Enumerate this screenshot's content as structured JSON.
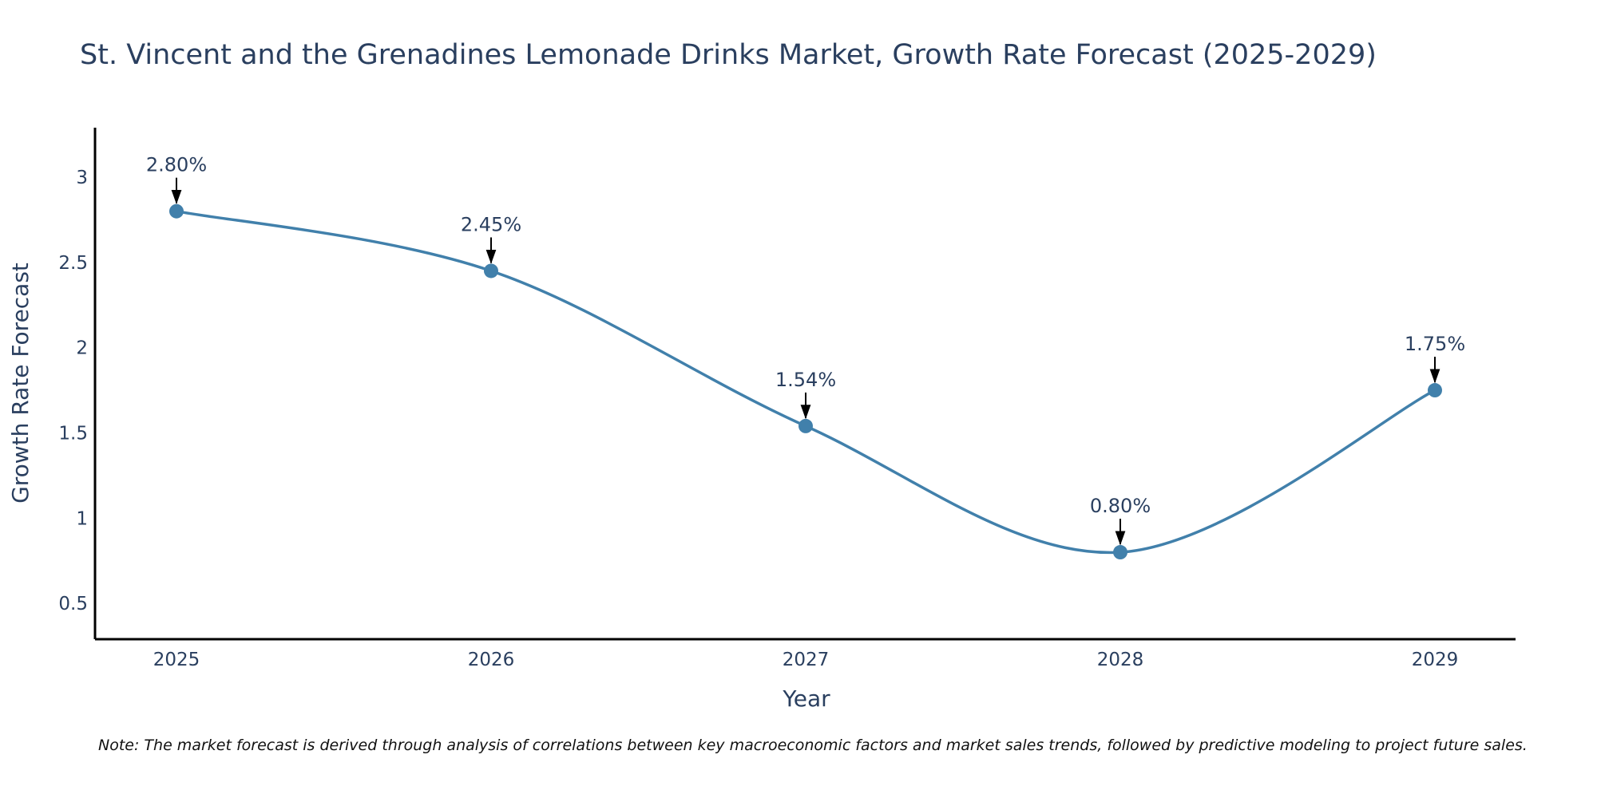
{
  "chart_data": {
    "type": "line",
    "title": "St. Vincent and the Grenadines Lemonade Drinks Market, Growth Rate Forecast (2025-2029)",
    "xlabel": "Year",
    "ylabel": "Growth Rate Forecast",
    "categories": [
      "2025",
      "2026",
      "2027",
      "2028",
      "2029"
    ],
    "series": [
      {
        "name": "Growth Rate Forecast",
        "values": [
          2.8,
          2.45,
          1.54,
          0.8,
          1.75
        ],
        "labels": [
          "2.80%",
          "2.45%",
          "1.54%",
          "0.80%",
          "1.75%"
        ]
      }
    ],
    "ylim": [
      0.29,
      3.29
    ],
    "yticks": [
      0.5,
      1,
      1.5,
      2,
      2.5,
      3
    ],
    "ytick_labels": [
      "0.5",
      "1",
      "1.5",
      "2",
      "2.5",
      "3"
    ],
    "grid": false,
    "line_color": "#4180ab",
    "marker_color": "#4180ab",
    "note": "Note: The market forecast is derived through analysis of correlations between key macroeconomic factors and market sales trends, followed by predictive modeling to project future sales."
  }
}
